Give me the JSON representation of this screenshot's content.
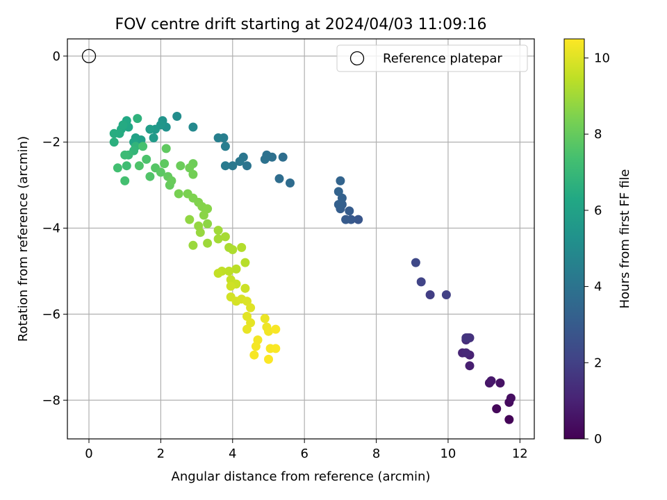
{
  "chart_data": {
    "type": "scatter",
    "title": "FOV centre drift starting at 2024/04/03 11:09:16",
    "xlabel": "Angular distance from reference (arcmin)",
    "ylabel": "Rotation from reference (arcmin)",
    "xlim": [
      -0.6,
      12.4
    ],
    "ylim": [
      -8.9,
      0.4
    ],
    "xticks": [
      0,
      2,
      4,
      6,
      8,
      10,
      12
    ],
    "yticks": [
      0,
      -2,
      -4,
      -6,
      -8
    ],
    "grid": true,
    "legend": {
      "position": "top-right",
      "entries": [
        "Reference platepar"
      ]
    },
    "reference_point": {
      "x": 0,
      "y": 0
    },
    "colorbar": {
      "label": "Hours from first FF file",
      "range": [
        0,
        10.5
      ],
      "ticks": [
        0,
        2,
        4,
        6,
        8,
        10
      ],
      "colormap": "viridis"
    },
    "series": [
      {
        "columns": [
          "x",
          "y",
          "hours"
        ],
        "points": [
          [
            11.7,
            -8.45,
            0.1
          ],
          [
            11.35,
            -8.2,
            0.2
          ],
          [
            11.7,
            -8.05,
            0.3
          ],
          [
            11.75,
            -7.95,
            0.4
          ],
          [
            11.45,
            -7.6,
            0.5
          ],
          [
            11.15,
            -7.6,
            0.6
          ],
          [
            11.2,
            -7.55,
            0.7
          ],
          [
            10.6,
            -7.2,
            0.9
          ],
          [
            10.6,
            -6.95,
            1.0
          ],
          [
            10.4,
            -6.9,
            1.1
          ],
          [
            10.5,
            -6.9,
            1.2
          ],
          [
            10.5,
            -6.6,
            1.3
          ],
          [
            10.55,
            -6.55,
            1.4
          ],
          [
            10.6,
            -6.55,
            1.5
          ],
          [
            10.5,
            -6.55,
            1.6
          ],
          [
            9.5,
            -5.55,
            1.9
          ],
          [
            9.95,
            -5.55,
            2.0
          ],
          [
            9.25,
            -5.25,
            2.1
          ],
          [
            9.1,
            -4.8,
            2.3
          ],
          [
            7.5,
            -3.8,
            2.8
          ],
          [
            7.3,
            -3.8,
            2.9
          ],
          [
            7.15,
            -3.8,
            3.0
          ],
          [
            7.25,
            -3.6,
            3.05
          ],
          [
            7.0,
            -3.55,
            3.1
          ],
          [
            7.05,
            -3.45,
            3.15
          ],
          [
            6.95,
            -3.45,
            3.2
          ],
          [
            7.05,
            -3.3,
            3.25
          ],
          [
            6.95,
            -3.15,
            3.3
          ],
          [
            7.0,
            -2.9,
            3.35
          ],
          [
            5.6,
            -2.95,
            3.7
          ],
          [
            5.3,
            -2.85,
            3.75
          ],
          [
            5.4,
            -2.35,
            3.8
          ],
          [
            5.1,
            -2.35,
            3.85
          ],
          [
            4.95,
            -2.3,
            3.9
          ],
          [
            4.9,
            -2.4,
            3.95
          ],
          [
            4.4,
            -2.55,
            4.05
          ],
          [
            4.3,
            -2.35,
            4.1
          ],
          [
            4.2,
            -2.45,
            4.15
          ],
          [
            4.0,
            -2.55,
            4.2
          ],
          [
            3.8,
            -2.55,
            4.3
          ],
          [
            3.8,
            -2.1,
            4.4
          ],
          [
            3.75,
            -1.9,
            4.45
          ],
          [
            3.6,
            -1.9,
            4.5
          ],
          [
            2.9,
            -1.65,
            4.9
          ],
          [
            2.45,
            -1.4,
            5.1
          ],
          [
            2.15,
            -1.65,
            5.3
          ],
          [
            2.05,
            -1.5,
            5.4
          ],
          [
            2.0,
            -1.6,
            5.5
          ],
          [
            1.85,
            -1.7,
            5.6
          ],
          [
            1.8,
            -1.9,
            5.7
          ],
          [
            1.7,
            -1.7,
            5.8
          ],
          [
            1.45,
            -1.95,
            5.9
          ],
          [
            1.3,
            -1.9,
            6.0
          ],
          [
            1.25,
            -2.0,
            6.1
          ],
          [
            1.1,
            -1.65,
            6.2
          ],
          [
            1.05,
            -1.5,
            6.3
          ],
          [
            0.9,
            -1.7,
            6.35
          ],
          [
            0.95,
            -1.6,
            6.4
          ],
          [
            0.85,
            -1.8,
            6.45
          ],
          [
            0.7,
            -1.8,
            6.5
          ],
          [
            0.7,
            -2.0,
            6.6
          ],
          [
            1.35,
            -1.45,
            6.7
          ],
          [
            1.3,
            -2.1,
            6.8
          ],
          [
            1.25,
            -2.2,
            6.9
          ],
          [
            1.1,
            -2.3,
            7.0
          ],
          [
            1.0,
            -2.3,
            7.1
          ],
          [
            1.05,
            -2.55,
            7.2
          ],
          [
            0.8,
            -2.6,
            7.3
          ],
          [
            1.0,
            -2.9,
            7.35
          ],
          [
            1.5,
            -2.1,
            7.4
          ],
          [
            1.6,
            -2.4,
            7.5
          ],
          [
            1.4,
            -2.55,
            7.55
          ],
          [
            1.7,
            -2.8,
            7.6
          ],
          [
            1.85,
            -2.6,
            7.7
          ],
          [
            2.0,
            -2.7,
            7.8
          ],
          [
            2.1,
            -2.5,
            7.85
          ],
          [
            2.15,
            -2.15,
            7.9
          ],
          [
            2.2,
            -2.8,
            7.95
          ],
          [
            2.25,
            -3.0,
            8.0
          ],
          [
            2.3,
            -2.9,
            8.05
          ],
          [
            2.55,
            -2.55,
            8.1
          ],
          [
            2.9,
            -2.5,
            8.15
          ],
          [
            2.8,
            -2.6,
            8.2
          ],
          [
            2.9,
            -2.75,
            8.25
          ],
          [
            2.5,
            -3.2,
            8.35
          ],
          [
            2.75,
            -3.2,
            8.4
          ],
          [
            2.9,
            -3.3,
            8.45
          ],
          [
            3.05,
            -3.4,
            8.5
          ],
          [
            3.15,
            -3.5,
            8.55
          ],
          [
            3.3,
            -3.55,
            8.6
          ],
          [
            3.2,
            -3.7,
            8.65
          ],
          [
            3.3,
            -3.9,
            8.7
          ],
          [
            2.8,
            -3.8,
            8.75
          ],
          [
            3.05,
            -3.95,
            8.8
          ],
          [
            3.1,
            -4.1,
            8.85
          ],
          [
            2.9,
            -4.4,
            8.9
          ],
          [
            3.3,
            -4.35,
            8.95
          ],
          [
            3.6,
            -4.05,
            9.0
          ],
          [
            3.6,
            -4.25,
            9.05
          ],
          [
            3.8,
            -4.2,
            9.1
          ],
          [
            3.9,
            -4.45,
            9.15
          ],
          [
            4.0,
            -4.5,
            9.2
          ],
          [
            4.25,
            -4.45,
            9.3
          ],
          [
            4.35,
            -4.8,
            9.35
          ],
          [
            4.1,
            -4.95,
            9.4
          ],
          [
            3.9,
            -5.0,
            9.45
          ],
          [
            3.7,
            -5.0,
            9.5
          ],
          [
            3.6,
            -5.05,
            9.55
          ],
          [
            3.95,
            -5.2,
            9.6
          ],
          [
            4.1,
            -5.3,
            9.65
          ],
          [
            4.35,
            -5.4,
            9.7
          ],
          [
            3.95,
            -5.35,
            9.75
          ],
          [
            3.95,
            -5.6,
            9.8
          ],
          [
            4.1,
            -5.7,
            9.85
          ],
          [
            4.25,
            -5.65,
            9.9
          ],
          [
            4.4,
            -5.7,
            9.95
          ],
          [
            4.5,
            -5.85,
            10.0
          ],
          [
            4.4,
            -6.05,
            10.05
          ],
          [
            4.5,
            -6.2,
            10.1
          ],
          [
            4.4,
            -6.35,
            10.15
          ],
          [
            4.9,
            -6.1,
            10.2
          ],
          [
            4.95,
            -6.3,
            10.25
          ],
          [
            5.0,
            -6.4,
            10.3
          ],
          [
            4.7,
            -6.6,
            10.32
          ],
          [
            4.65,
            -6.75,
            10.35
          ],
          [
            4.6,
            -6.95,
            10.38
          ],
          [
            5.05,
            -6.8,
            10.4
          ],
          [
            5.2,
            -6.35,
            10.42
          ],
          [
            5.2,
            -6.8,
            10.44
          ],
          [
            5.0,
            -7.05,
            10.46
          ]
        ]
      }
    ]
  }
}
